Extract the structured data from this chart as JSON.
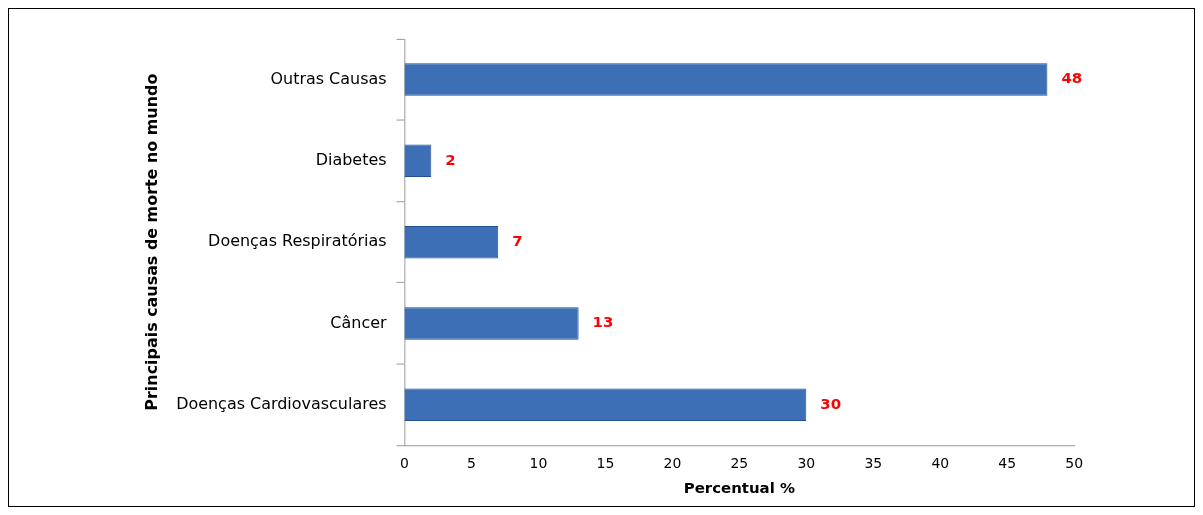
{
  "chart_data": {
    "type": "bar",
    "orientation": "horizontal",
    "xlabel": "Percentual %",
    "ylabel": "Principais causas de morte no mundo",
    "categories": [
      "Outras Causas",
      "Diabetes",
      "Doenças Respiratórias",
      "Câncer",
      "Doenças Cardiovasculares"
    ],
    "values": [
      48,
      2,
      7,
      13,
      30
    ],
    "color": "#3c6fb5",
    "xlim": [
      0,
      50
    ],
    "xticks": [
      0,
      5,
      10,
      15,
      20,
      25,
      30,
      35,
      40,
      45,
      50
    ],
    "grid": false,
    "legend": false,
    "data_labels": true
  }
}
